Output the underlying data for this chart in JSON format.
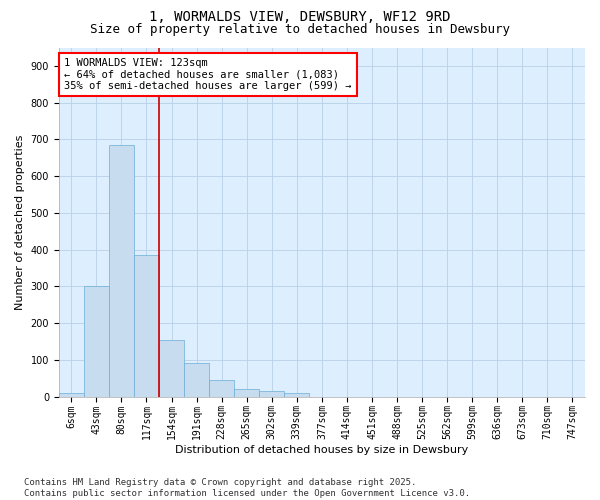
{
  "title_line1": "1, WORMALDS VIEW, DEWSBURY, WF12 9RD",
  "title_line2": "Size of property relative to detached houses in Dewsbury",
  "xlabel": "Distribution of detached houses by size in Dewsbury",
  "ylabel": "Number of detached properties",
  "bar_color": "#c8dcf0",
  "bar_edge_color": "#6aaed6",
  "vline_color": "#cc0000",
  "vline_x": 3.5,
  "categories": [
    "6sqm",
    "43sqm",
    "80sqm",
    "117sqm",
    "154sqm",
    "191sqm",
    "228sqm",
    "265sqm",
    "302sqm",
    "339sqm",
    "377sqm",
    "414sqm",
    "451sqm",
    "488sqm",
    "525sqm",
    "562sqm",
    "599sqm",
    "636sqm",
    "673sqm",
    "710sqm",
    "747sqm"
  ],
  "values": [
    10,
    300,
    685,
    385,
    155,
    90,
    45,
    20,
    15,
    10,
    0,
    0,
    0,
    0,
    0,
    0,
    0,
    0,
    0,
    0,
    0
  ],
  "ylim": [
    0,
    950
  ],
  "yticks": [
    0,
    100,
    200,
    300,
    400,
    500,
    600,
    700,
    800,
    900
  ],
  "grid_color": "#b8cfe8",
  "bg_color": "#ddeeff",
  "annotation_text": "1 WORMALDS VIEW: 123sqm\n← 64% of detached houses are smaller (1,083)\n35% of semi-detached houses are larger (599) →",
  "footer_text": "Contains HM Land Registry data © Crown copyright and database right 2025.\nContains public sector information licensed under the Open Government Licence v3.0.",
  "title_fontsize": 10,
  "subtitle_fontsize": 9,
  "label_fontsize": 8,
  "tick_fontsize": 7,
  "annotation_fontsize": 7.5,
  "footer_fontsize": 6.5
}
